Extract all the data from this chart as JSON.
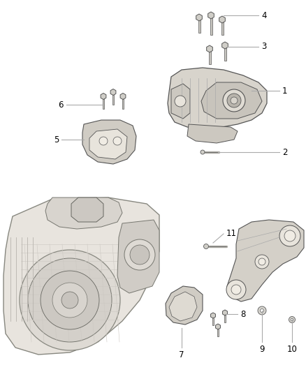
{
  "bg_color": "#ffffff",
  "fig_width": 4.38,
  "fig_height": 5.33,
  "dpi": 100,
  "line_color": "#aaaaaa",
  "label_color": "#000000",
  "label_fontsize": 8.5,
  "part_edge": "#555555",
  "part_face": "#e8e6e2",
  "part_dark": "#b0aca6",
  "part_darker": "#888480"
}
